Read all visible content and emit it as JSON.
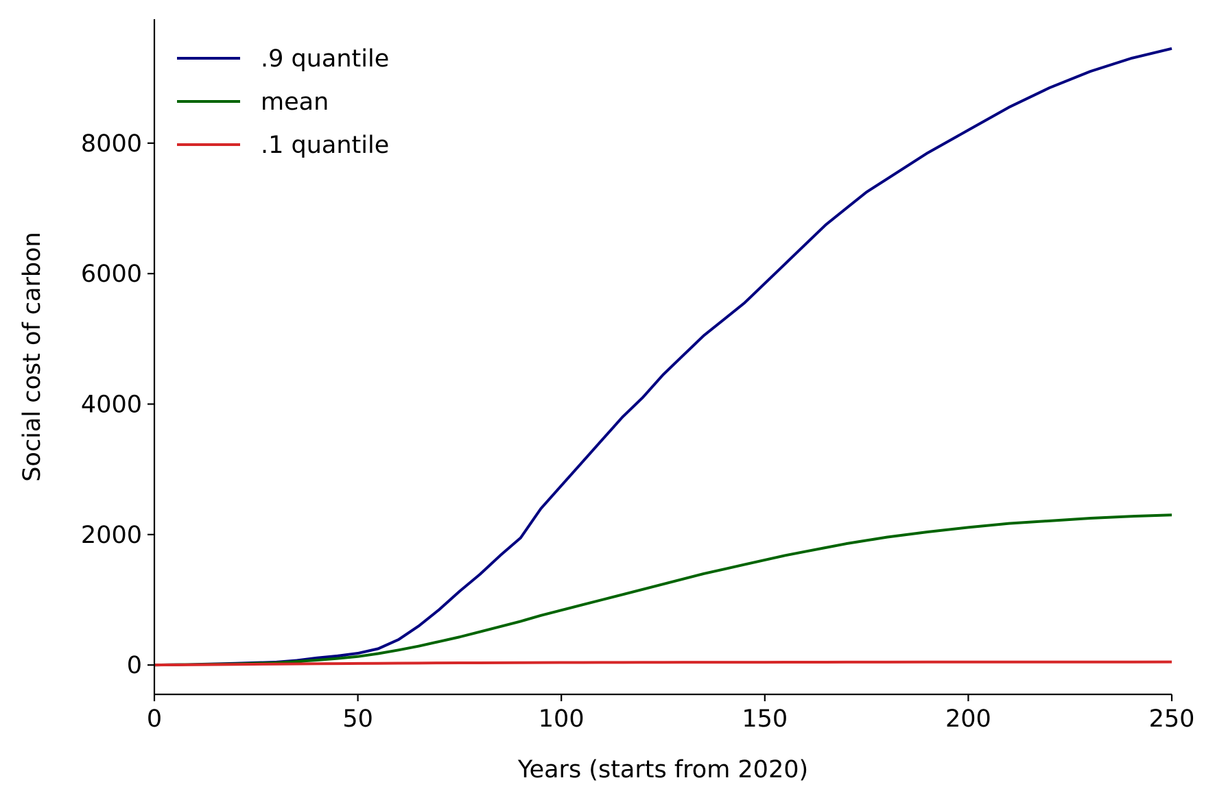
{
  "chart_data": {
    "type": "line",
    "title": "",
    "xlabel": "Years (starts from 2020)",
    "ylabel": "Social cost of carbon",
    "xlim": [
      0,
      250
    ],
    "ylim": [
      -450,
      9900
    ],
    "xticks": [
      0,
      50,
      100,
      150,
      200,
      250
    ],
    "yticks": [
      0,
      2000,
      4000,
      6000,
      8000
    ],
    "x_tick_labels": [
      "0",
      "50",
      "100",
      "150",
      "200",
      "250"
    ],
    "y_tick_labels": [
      "0",
      "2000",
      "4000",
      "6000",
      "8000"
    ],
    "grid": false,
    "legend_position": "top-left",
    "x": [
      0,
      10,
      20,
      30,
      35,
      40,
      45,
      50,
      55,
      60,
      65,
      70,
      75,
      80,
      85,
      90,
      95,
      100,
      105,
      110,
      115,
      120,
      125,
      130,
      135,
      140,
      145,
      150,
      155,
      160,
      165,
      170,
      175,
      180,
      190,
      200,
      210,
      220,
      230,
      240,
      250
    ],
    "series": [
      {
        "name": ".9 quantile",
        "color": "#000080",
        "values": [
          0,
          10,
          25,
          45,
          70,
          110,
          140,
          180,
          250,
          390,
          600,
          850,
          1130,
          1390,
          1680,
          1950,
          2400,
          2750,
          3100,
          3450,
          3800,
          4100,
          4450,
          4750,
          5050,
          5300,
          5550,
          5850,
          6150,
          6450,
          6750,
          7000,
          7250,
          7450,
          7850,
          8200,
          8550,
          8850,
          9100,
          9300,
          9450
        ]
      },
      {
        "name": "mean",
        "color": "#006400",
        "values": [
          0,
          8,
          18,
          35,
          55,
          75,
          100,
          130,
          175,
          230,
          290,
          360,
          430,
          510,
          590,
          670,
          760,
          840,
          920,
          1000,
          1080,
          1160,
          1240,
          1320,
          1400,
          1470,
          1540,
          1610,
          1680,
          1740,
          1800,
          1860,
          1910,
          1960,
          2040,
          2110,
          2170,
          2210,
          2250,
          2280,
          2300
        ]
      },
      {
        "name": ".1 quantile",
        "color": "#d62728",
        "values": [
          0,
          5,
          10,
          15,
          18,
          20,
          22,
          24,
          26,
          28,
          30,
          32,
          33,
          34,
          35,
          36,
          37,
          38,
          39,
          40,
          40,
          41,
          41,
          42,
          42,
          43,
          43,
          43,
          44,
          44,
          44,
          45,
          45,
          45,
          46,
          46,
          46,
          47,
          47,
          47,
          48
        ]
      }
    ]
  }
}
